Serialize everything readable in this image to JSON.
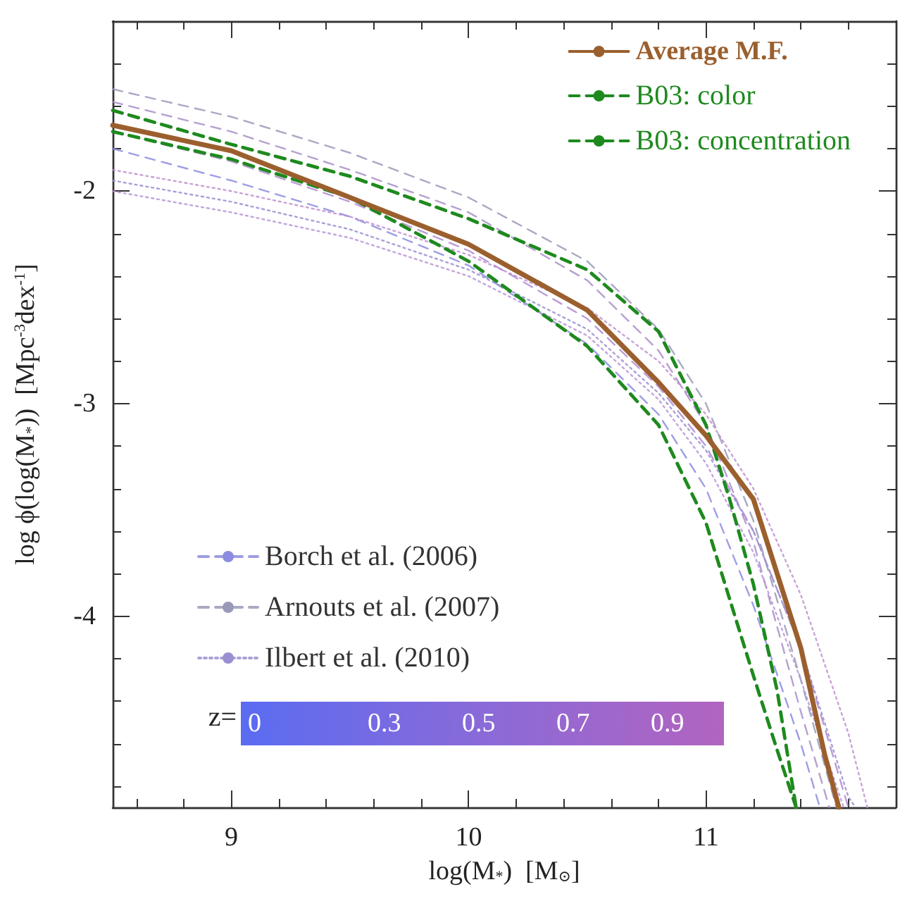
{
  "chart_data": {
    "type": "line",
    "xlabel": "log(M$_{*}$)  [M$_{⊙}$]",
    "ylabel": "log ϕ(log(M$_{*}$))  [Mpc$^{-3}$dex$^{-1}$]",
    "xlim": [
      8.5,
      11.8
    ],
    "ylim": [
      -4.9,
      -1.2
    ],
    "xticks": [
      {
        "value": 8.6,
        "label": null
      },
      {
        "value": 8.8,
        "label": null
      },
      9,
      {
        "value": 9.2,
        "label": null
      },
      {
        "value": 9.4,
        "label": null
      },
      {
        "value": 9.6,
        "label": null
      },
      {
        "value": 9.8,
        "label": null
      },
      10,
      {
        "value": 10.2,
        "label": null
      },
      {
        "value": 10.4,
        "label": null
      },
      {
        "value": 10.6,
        "label": null
      },
      {
        "value": 10.8,
        "label": null
      },
      11,
      {
        "value": 11.2,
        "label": null
      },
      {
        "value": 11.4,
        "label": null
      },
      {
        "value": 11.6,
        "label": null
      }
    ],
    "yticks": [
      {
        "value": -4.8,
        "label": null
      },
      {
        "value": -4.6,
        "label": null
      },
      {
        "value": -4.4,
        "label": null
      },
      {
        "value": -4.2,
        "label": null
      },
      -4,
      {
        "value": -3.8,
        "label": null
      },
      {
        "value": -3.6,
        "label": null
      },
      {
        "value": -3.4,
        "label": null
      },
      {
        "value": -3.2,
        "label": null
      },
      -3,
      {
        "value": -2.8,
        "label": null
      },
      {
        "value": -2.6,
        "label": null
      },
      {
        "value": -2.4,
        "label": null
      },
      {
        "value": -2.2,
        "label": null
      },
      -2,
      {
        "value": -1.8,
        "label": null
      },
      {
        "value": -1.6,
        "label": null
      },
      {
        "value": -1.4,
        "label": null
      }
    ],
    "grid": false,
    "legend": "top right",
    "marker": "none",
    "clabel": "z=",
    "annotations": [
      "0",
      "0.3",
      "0.5",
      "0.7",
      "0.9"
    ],
    "series": [
      {
        "name": "Average M.F.",
        "color": "#9b5f2e",
        "line_style": "solid",
        "x": [
          8.5,
          9,
          9.5,
          10,
          10.5,
          10.8,
          11,
          11.2,
          11.4,
          11.5,
          11.56
        ],
        "values": [
          -1.69,
          -1.81,
          -2.03,
          -2.25,
          -2.56,
          -2.9,
          -3.15,
          -3.45,
          -4.15,
          -4.65,
          -4.9
        ]
      },
      {
        "name": "B03: color",
        "color": "#1e8a1e",
        "line_style": "dashed",
        "x": [
          8.5,
          9,
          9.5,
          10,
          10.5,
          10.8,
          11,
          11.2,
          11.3,
          11.38
        ],
        "values": [
          -1.72,
          -1.85,
          -2.03,
          -2.33,
          -2.73,
          -3.1,
          -3.56,
          -4.28,
          -4.63,
          -4.9
        ]
      },
      {
        "name": "B03: concentration",
        "color": "#1e8a1e",
        "line_style": "dashed",
        "x": [
          8.5,
          9,
          9.5,
          10,
          10.5,
          10.8,
          11,
          11.1,
          11.2,
          11.3,
          11.38
        ],
        "values": [
          -1.62,
          -1.78,
          -1.93,
          -2.13,
          -2.37,
          -2.66,
          -3.1,
          -3.45,
          -3.85,
          -4.35,
          -4.9
        ]
      },
      {
        "name": "Borch et al. (2006)",
        "color": "#8c8ce0",
        "line_style": "dashed",
        "x": [
          8.5,
          9,
          9.5,
          10,
          10.5,
          10.8,
          11,
          11.2,
          11.4,
          11.48
        ],
        "values": [
          -1.8,
          -1.95,
          -2.12,
          -2.35,
          -2.72,
          -3.05,
          -3.4,
          -3.95,
          -4.6,
          -4.9
        ]
      },
      {
        "color": "#b08ad0",
        "line_style": "dashed",
        "x": [
          8.5,
          9,
          9.5,
          10,
          10.5,
          10.8,
          11,
          11.2,
          11.4,
          11.6
        ],
        "values": [
          -1.72,
          -1.86,
          -2.05,
          -2.28,
          -2.6,
          -2.92,
          -3.2,
          -3.6,
          -4.15,
          -4.9
        ]
      },
      {
        "name": "Arnouts et al. (2007)",
        "color": "#9a9ab8",
        "line_style": "dashed",
        "x": [
          8.5,
          9,
          9.5,
          10,
          10.5,
          10.8,
          11,
          11.2,
          11.4,
          11.55
        ],
        "values": [
          -1.52,
          -1.65,
          -1.82,
          -2.03,
          -2.33,
          -2.65,
          -3.0,
          -3.55,
          -4.3,
          -4.9
        ]
      },
      {
        "color": "#a98fc8",
        "line_style": "dashed",
        "x": [
          8.5,
          9,
          9.5,
          10,
          10.5,
          10.8,
          11,
          11.2,
          11.4,
          11.52
        ],
        "values": [
          -1.58,
          -1.72,
          -1.9,
          -2.1,
          -2.42,
          -2.75,
          -3.1,
          -3.65,
          -4.45,
          -4.9
        ]
      },
      {
        "name": "Ilbert et al. (2010)",
        "color": "#9a8fd0",
        "line_style": "dotted",
        "x": [
          8.5,
          9,
          9.5,
          10,
          10.5,
          10.8,
          11,
          11.2,
          11.4,
          11.6,
          11.63
        ],
        "values": [
          -1.95,
          -2.05,
          -2.18,
          -2.37,
          -2.65,
          -2.95,
          -3.22,
          -3.6,
          -4.15,
          -4.85,
          -4.9
        ]
      },
      {
        "color": "#b894d6",
        "line_style": "dotted",
        "x": [
          8.5,
          9,
          9.5,
          10,
          10.5,
          10.8,
          11,
          11.2,
          11.4,
          11.58
        ],
        "values": [
          -2.0,
          -2.1,
          -2.22,
          -2.4,
          -2.68,
          -2.98,
          -3.28,
          -3.7,
          -4.3,
          -4.9
        ]
      },
      {
        "color": "#c090d0",
        "line_style": "dotted",
        "x": [
          8.5,
          9,
          9.5,
          10,
          10.5,
          10.8,
          11,
          11.2,
          11.4,
          11.6,
          11.68
        ],
        "values": [
          -1.9,
          -2.0,
          -2.12,
          -2.3,
          -2.55,
          -2.8,
          -3.05,
          -3.4,
          -3.9,
          -4.55,
          -4.9
        ]
      }
    ]
  }
}
